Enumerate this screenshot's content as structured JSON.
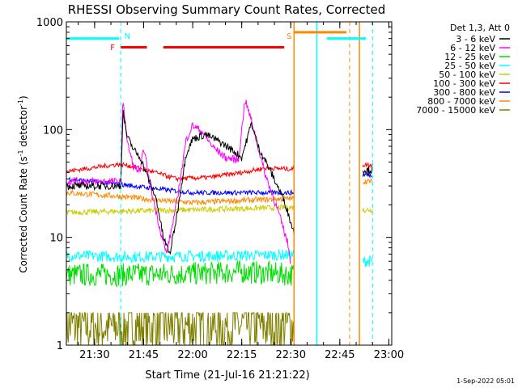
{
  "chart_data": {
    "type": "line",
    "title": "RHESSI Observing Summary Count Rates, Corrected",
    "ylabel_main": "Corrected Count Rate (s",
    "ylabel_sup1": "-1",
    "ylabel_mid": " detector",
    "ylabel_sup2": "-1",
    "ylabel_end": ")",
    "xlabel": "Start Time (21-Jul-16 21:21:22)",
    "footer": "1-Sep-2022 05:01",
    "y_scale": "log",
    "ylim": [
      1,
      1000
    ],
    "y_ticks": [
      {
        "value": 1,
        "label": "1"
      },
      {
        "value": 10,
        "label": "10"
      },
      {
        "value": 100,
        "label": "100"
      },
      {
        "value": 1000,
        "label": "1000"
      }
    ],
    "xlim": [
      "21:21:22",
      "23:00:53"
    ],
    "x_ticks": [
      {
        "time": "21:30",
        "label": "21:30"
      },
      {
        "time": "21:45",
        "label": "21:45"
      },
      {
        "time": "22:00",
        "label": "22:00"
      },
      {
        "time": "22:15",
        "label": "22:15"
      },
      {
        "time": "22:30",
        "label": "22:30"
      },
      {
        "time": "22:45",
        "label": "22:45"
      },
      {
        "time": "23:00",
        "label": "23:00"
      }
    ],
    "legend_title": "Det 1,3, Att 0",
    "legend_placement": "right",
    "series": [
      {
        "name": "3 - 6 keV",
        "color": "#000000",
        "points": [
          [
            "21:21:22",
            30
          ],
          [
            "21:38",
            30
          ],
          [
            "21:38:40",
            150
          ],
          [
            "21:40",
            85
          ],
          [
            "21:42",
            65
          ],
          [
            "21:44",
            55
          ],
          [
            "21:46",
            38
          ],
          [
            "21:49",
            22
          ],
          [
            "21:51",
            10
          ],
          [
            "21:53",
            7
          ],
          [
            "21:55",
            15
          ],
          [
            "21:58",
            60
          ],
          [
            "22:00",
            82
          ],
          [
            "22:04",
            90
          ],
          [
            "22:08",
            78
          ],
          [
            "22:12",
            65
          ],
          [
            "22:15",
            55
          ],
          [
            "22:18",
            115
          ],
          [
            "22:20",
            70
          ],
          [
            "22:24",
            40
          ],
          [
            "22:28",
            22
          ],
          [
            "22:31",
            11
          ]
        ]
      },
      {
        "name": "6 - 12 keV",
        "color": "#ff00ff",
        "points": [
          [
            "21:21:22",
            33
          ],
          [
            "21:38",
            33
          ],
          [
            "21:38:40",
            200
          ],
          [
            "21:40",
            75
          ],
          [
            "21:42",
            45
          ],
          [
            "21:44",
            40
          ],
          [
            "21:45",
            70
          ],
          [
            "21:47",
            30
          ],
          [
            "21:50",
            12
          ],
          [
            "21:52",
            7
          ],
          [
            "21:55",
            20
          ],
          [
            "21:58",
            80
          ],
          [
            "22:00",
            110
          ],
          [
            "22:03",
            95
          ],
          [
            "22:06",
            70
          ],
          [
            "22:10",
            55
          ],
          [
            "22:14",
            52
          ],
          [
            "22:16",
            190
          ],
          [
            "22:18",
            120
          ],
          [
            "22:22",
            40
          ],
          [
            "22:26",
            18
          ],
          [
            "22:29",
            9
          ],
          [
            "22:30",
            6
          ]
        ]
      },
      {
        "name": "12 - 25 keV",
        "color": "#00dd00",
        "points": [
          [
            "21:21:22",
            4.5
          ],
          [
            "21:38",
            4.5
          ],
          [
            "22:00",
            4.6
          ],
          [
            "22:15",
            4.8
          ],
          [
            "22:31",
            4.5
          ]
        ]
      },
      {
        "name": "25 - 50 keV",
        "color": "#00ffff",
        "points": [
          [
            "21:21:22",
            6.8
          ],
          [
            "21:38",
            6.6
          ],
          [
            "22:00",
            6.7
          ],
          [
            "22:15",
            6.8
          ],
          [
            "22:31",
            6.9
          ]
        ]
      },
      {
        "name": "50 - 100 keV",
        "color": "#cccc00",
        "points": [
          [
            "21:21:22",
            17
          ],
          [
            "21:38",
            17.5
          ],
          [
            "22:00",
            18
          ],
          [
            "22:15",
            18.5
          ],
          [
            "22:31",
            19
          ]
        ]
      },
      {
        "name": "100 - 300 keV",
        "color": "#ff0000",
        "points": [
          [
            "21:21:22",
            41
          ],
          [
            "21:38",
            48
          ],
          [
            "21:45",
            43
          ],
          [
            "21:55",
            35
          ],
          [
            "22:05",
            36
          ],
          [
            "22:15",
            40
          ],
          [
            "22:22",
            44
          ],
          [
            "22:31",
            43
          ]
        ]
      },
      {
        "name": "300 - 800 keV",
        "color": "#0000ff",
        "points": [
          [
            "21:21:22",
            35
          ],
          [
            "21:38",
            31
          ],
          [
            "21:50",
            28
          ],
          [
            "22:00",
            26
          ],
          [
            "22:15",
            26
          ],
          [
            "22:31",
            26
          ]
        ]
      },
      {
        "name": "800 - 7000 keV",
        "color": "#ff8800",
        "points": [
          [
            "21:21:22",
            26
          ],
          [
            "21:38",
            24
          ],
          [
            "21:50",
            22
          ],
          [
            "22:00",
            21
          ],
          [
            "22:15",
            22
          ],
          [
            "22:31",
            23
          ]
        ]
      },
      {
        "name": "7000 - 15000 keV",
        "color": "#808000",
        "points": [
          [
            "21:21:22",
            1.5
          ],
          [
            "22:31",
            1.5
          ]
        ]
      }
    ],
    "post_gap": {
      "start": "22:52",
      "end": "22:55",
      "series_levels": {
        "100 - 300 keV": 47,
        "300 - 800 keV": 38,
        "800 - 7000 keV": 33,
        "50 - 100 keV": 18,
        "25 - 50 keV": 6,
        "3 - 6 keV": 42
      }
    },
    "annotations": {
      "night_bars": [
        {
          "start": "21:21:22",
          "end": "21:37:30",
          "level": 700
        },
        {
          "start": "22:41",
          "end": "22:53",
          "level": 700
        }
      ],
      "saa_bars": [
        {
          "start": "22:31",
          "end": "22:47",
          "level": 800
        }
      ],
      "flare_bars": [
        {
          "start": "21:38",
          "end": "21:46",
          "level": 580
        },
        {
          "start": "21:51",
          "end": "22:28",
          "level": 580
        }
      ],
      "markers": [
        {
          "label": "N",
          "time": "21:38",
          "color": "#00ffff"
        },
        {
          "label": "F",
          "time": "21:36",
          "color": "#ff0000"
        },
        {
          "label": "S",
          "time": "22:30",
          "color": "#ff8800"
        }
      ],
      "vlines_solid": [
        {
          "time": "22:31",
          "color": "#ff8800"
        },
        {
          "time": "22:38",
          "color": "#00ffff"
        },
        {
          "time": "22:51",
          "color": "#ff8800"
        }
      ],
      "vlines_dashed": [
        {
          "time": "21:38",
          "color": "#00ffff"
        },
        {
          "time": "22:48",
          "color": "#ff8800"
        },
        {
          "time": "22:55",
          "color": "#00ffff"
        }
      ]
    }
  }
}
